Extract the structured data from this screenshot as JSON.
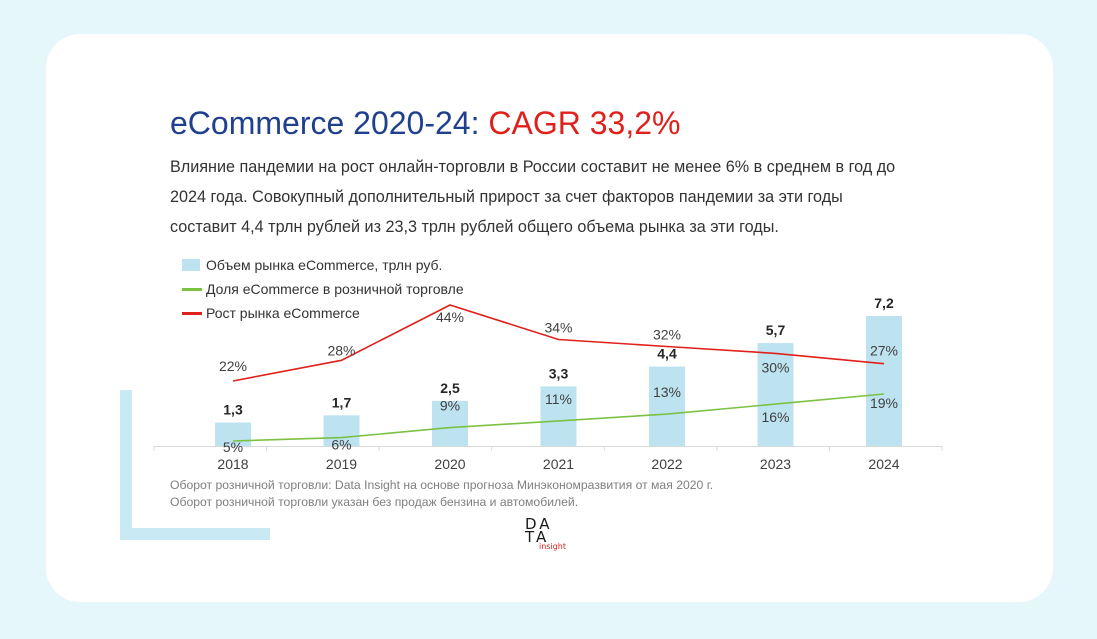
{
  "title": {
    "main": "eCommerce 2020-24: ",
    "accent": "CAGR 33,2%"
  },
  "subtitle": "Влияние пандемии на рост онлайн-торговли в России составит не менее 6% в среднем в год до 2024 года. Совокупный дополнительный прирост за счет факторов пандемии за эти годы составит 4,4 трлн рублей из 23,3 трлн рублей общего объема рынка за эти годы.",
  "source": {
    "line1": "Оборот розничной торговли: Data Insight на основе прогноза Минэкономразвития от мая 2020 г.",
    "line2": "Оборот розничной торговли указан без продаж бензина и автомобилей."
  },
  "logo": {
    "line1": "DA",
    "line2": "TA",
    "line3": "insight"
  },
  "colors": {
    "background": "#e6f7fc",
    "title_blue": "#1f3f8f",
    "title_red": "#e0211b",
    "bar": "#bde3f1",
    "share_line": "#7cc242",
    "growth_line": "#e0211b"
  },
  "chart_data": {
    "type": "bar",
    "categories": [
      "2018",
      "2019",
      "2020",
      "2021",
      "2022",
      "2023",
      "2024"
    ],
    "series": [
      {
        "name": "Объем рынка eCommerce, трлн руб.",
        "type": "bar",
        "values": [
          1.3,
          1.7,
          2.5,
          3.3,
          4.4,
          5.7,
          7.2
        ],
        "labels": [
          "1,3",
          "1,7",
          "2,5",
          "3,3",
          "4,4",
          "5,7",
          "7,2"
        ]
      },
      {
        "name": "Доля eCommerce в розничной торговле",
        "type": "line",
        "values": [
          5,
          6,
          9,
          11,
          13,
          16,
          19
        ],
        "labels": [
          "5%",
          "6%",
          "9%",
          "11%",
          "13%",
          "16%",
          "19%"
        ]
      },
      {
        "name": "Рост рынка eCommerce",
        "type": "line",
        "values": [
          22,
          28,
          44,
          34,
          32,
          30,
          27
        ],
        "labels": [
          "22%",
          "28%",
          "44%",
          "34%",
          "32%",
          "30%",
          "27%"
        ]
      }
    ],
    "legend_position": "top-left",
    "grid": false
  }
}
